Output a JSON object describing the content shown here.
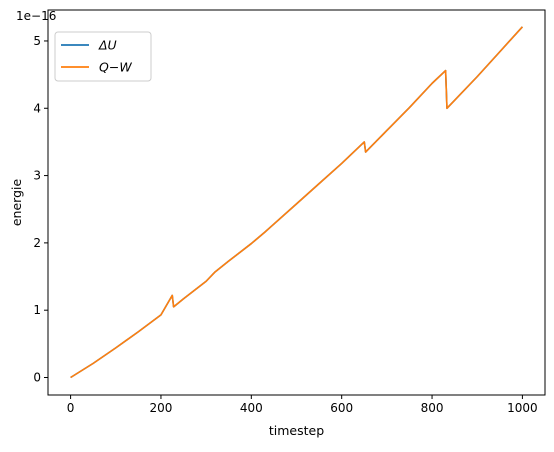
{
  "chart_data": {
    "type": "line",
    "title": "",
    "xlabel": "timestep",
    "ylabel": "energie",
    "offset_text": "1e−16",
    "xlim": [
      -50,
      1050
    ],
    "ylim": [
      -0.26,
      5.46
    ],
    "x_ticks": [
      0,
      200,
      400,
      600,
      800,
      1000
    ],
    "y_ticks": [
      0,
      1,
      2,
      3,
      4,
      5
    ],
    "grid": false,
    "legend_position": "upper-left",
    "series": [
      {
        "name": "ΔU",
        "color": "#1f77b4",
        "x": [
          0,
          50,
          100,
          150,
          200,
          225,
          228,
          250,
          300,
          320,
          350,
          400,
          430,
          440,
          500,
          550,
          600,
          650,
          653,
          700,
          750,
          800,
          830,
          833,
          900,
          950,
          1000
        ],
        "y": [
          0,
          0.21,
          0.44,
          0.68,
          0.93,
          1.22,
          1.05,
          1.17,
          1.43,
          1.57,
          1.73,
          1.99,
          2.16,
          2.22,
          2.58,
          2.88,
          3.18,
          3.5,
          3.35,
          3.67,
          4.01,
          4.37,
          4.56,
          4.0,
          4.47,
          4.84,
          5.21
        ]
      },
      {
        "name": "Q−W",
        "color": "#ff7f0e",
        "x": [
          0,
          50,
          100,
          150,
          200,
          225,
          228,
          250,
          300,
          320,
          350,
          400,
          430,
          440,
          500,
          550,
          600,
          650,
          653,
          700,
          750,
          800,
          830,
          833,
          900,
          950,
          1000
        ],
        "y": [
          0,
          0.21,
          0.44,
          0.68,
          0.93,
          1.22,
          1.05,
          1.17,
          1.43,
          1.57,
          1.73,
          1.99,
          2.16,
          2.22,
          2.58,
          2.88,
          3.18,
          3.5,
          3.35,
          3.67,
          4.01,
          4.37,
          4.56,
          4.0,
          4.47,
          4.84,
          5.21
        ]
      }
    ]
  }
}
